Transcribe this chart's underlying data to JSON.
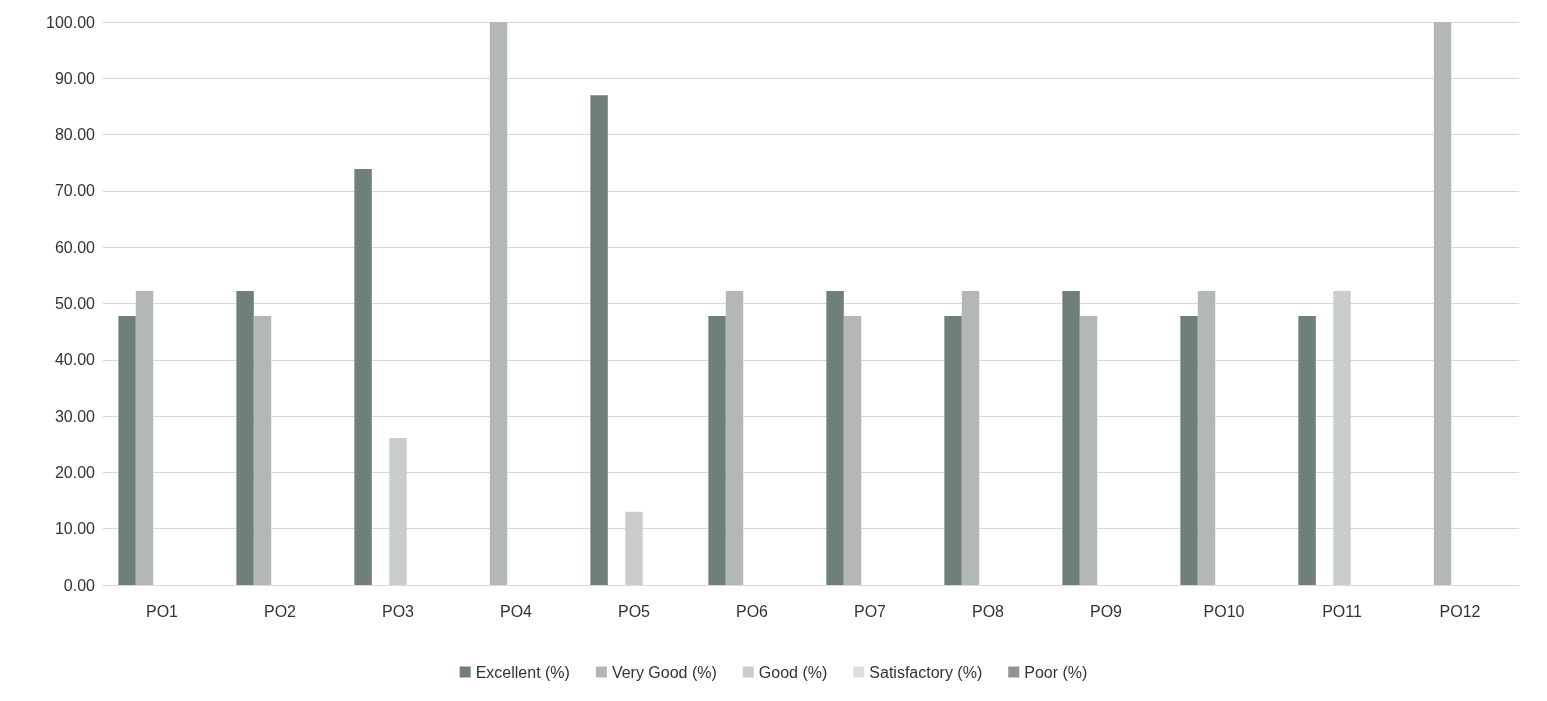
{
  "chart_data": {
    "type": "bar",
    "categories": [
      "PO1",
      "PO2",
      "PO3",
      "PO4",
      "PO5",
      "PO6",
      "PO7",
      "PO8",
      "PO9",
      "PO10",
      "PO11",
      "PO12"
    ],
    "series": [
      {
        "name": "Excellent (%)",
        "color": "#6f807a",
        "values": [
          47.8,
          52.2,
          73.9,
          0,
          87.0,
          47.8,
          52.2,
          47.8,
          52.2,
          47.8,
          47.8,
          0
        ]
      },
      {
        "name": "Very Good (%)",
        "color": "#b3b8b6",
        "values": [
          52.2,
          47.8,
          0,
          100,
          0,
          52.2,
          47.8,
          52.2,
          47.8,
          52.2,
          0,
          100
        ]
      },
      {
        "name": "Good (%)",
        "color": "#c9cdcb",
        "values": [
          0,
          0,
          26.1,
          0,
          13.0,
          0,
          0,
          0,
          0,
          0,
          52.2,
          0
        ]
      },
      {
        "name": "Satisfactory (%)",
        "color": "#dcdfdd",
        "values": [
          0,
          0,
          0,
          0,
          0,
          0,
          0,
          0,
          0,
          0,
          0,
          0
        ]
      },
      {
        "name": "Poor (%)",
        "color": "#8f9593",
        "values": [
          0,
          0,
          0,
          0,
          0,
          0,
          0,
          0,
          0,
          0,
          0,
          0
        ]
      }
    ],
    "ylim": [
      0,
      100
    ],
    "yticks": [
      {
        "value": 0,
        "label": "0.00"
      },
      {
        "value": 10,
        "label": "10.00"
      },
      {
        "value": 20,
        "label": "20.00"
      },
      {
        "value": 30,
        "label": "30.00"
      },
      {
        "value": 40,
        "label": "40.00"
      },
      {
        "value": 50,
        "label": "50.00"
      },
      {
        "value": 60,
        "label": "60.00"
      },
      {
        "value": 70,
        "label": "70.00"
      },
      {
        "value": 80,
        "label": "80.00"
      },
      {
        "value": 90,
        "label": "90.00"
      },
      {
        "value": 100,
        "label": "100.00"
      }
    ],
    "grid": "y",
    "legend": "bottom"
  }
}
